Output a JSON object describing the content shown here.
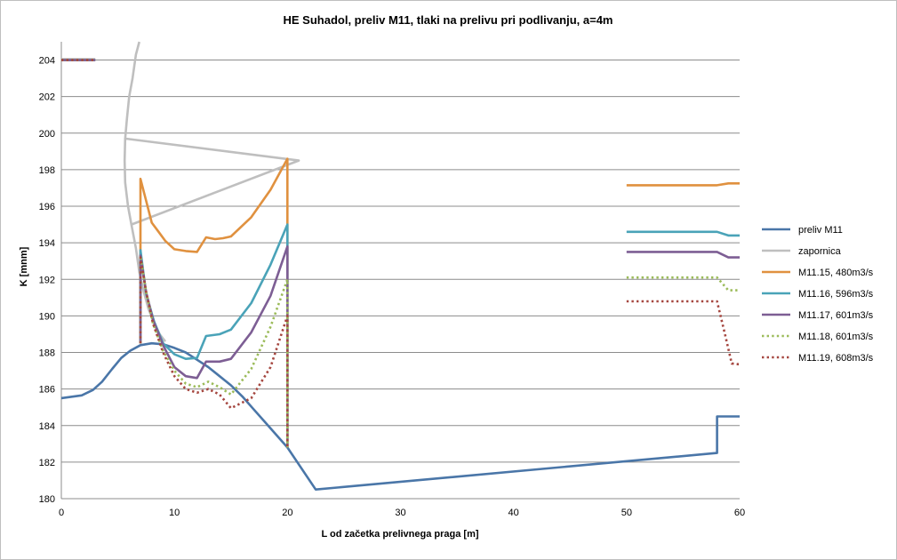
{
  "chart_data": {
    "type": "line",
    "title": "HE Suhadol, preliv M11, tlaki na prelivu pri podlivanju, a=4m",
    "xlabel": "L od začetka prelivnega praga [m]",
    "ylabel": "K [mnm]",
    "xlim": [
      0,
      60
    ],
    "ylim": [
      180,
      205
    ],
    "x_ticks": [
      0,
      10,
      20,
      30,
      40,
      50,
      60
    ],
    "x_tick_labels": [
      "0",
      "10",
      "20",
      "30",
      "40",
      "50",
      "60"
    ],
    "y_ticks": [
      180,
      182,
      184,
      186,
      188,
      190,
      192,
      194,
      196,
      198,
      200,
      202,
      204
    ],
    "y_tick_labels": [
      "180",
      "182",
      "184",
      "186",
      "188",
      "190",
      "192",
      "194",
      "196",
      "198",
      "200",
      "202",
      "204"
    ],
    "grid": "horizontal",
    "legend_position": "right",
    "series": [
      {
        "name": "preliv M11",
        "color": "#4a76a8",
        "dash": "solid",
        "width": 2.6,
        "segments": [
          [
            [
              0,
              185.5
            ],
            [
              1.8,
              185.65
            ],
            [
              2.8,
              185.95
            ],
            [
              3.6,
              186.4
            ],
            [
              4.5,
              187.1
            ],
            [
              5.3,
              187.7
            ],
            [
              6.1,
              188.1
            ],
            [
              7,
              188.4
            ],
            [
              8,
              188.5
            ],
            [
              9,
              188.45
            ],
            [
              10,
              188.25
            ],
            [
              11,
              188
            ],
            [
              12,
              187.6
            ],
            [
              13,
              187.2
            ],
            [
              14,
              186.7
            ],
            [
              15,
              186.2
            ],
            [
              16,
              185.6
            ],
            [
              17,
              184.9
            ],
            [
              18,
              184.2
            ],
            [
              19,
              183.5
            ],
            [
              20,
              182.8
            ],
            [
              22.5,
              180.5
            ],
            [
              58,
              182.5
            ],
            [
              58,
              184.5
            ],
            [
              60,
              184.5
            ]
          ]
        ]
      },
      {
        "name": "zapornica",
        "color": "#bfbfbf",
        "dash": "solid",
        "width": 2.6,
        "segments": [
          [
            [
              6.9,
              205
            ],
            [
              6.6,
              204.3
            ],
            [
              6.3,
              203
            ],
            [
              6,
              202
            ],
            [
              5.8,
              200.8
            ],
            [
              5.65,
              199.7
            ],
            [
              5.6,
              198.5
            ],
            [
              5.65,
              197.3
            ],
            [
              5.9,
              196
            ],
            [
              6.2,
              195
            ],
            [
              6.6,
              193.7
            ],
            [
              6.9,
              192.4
            ],
            [
              7.3,
              191.3
            ],
            [
              7.7,
              190.4
            ],
            [
              8.2,
              189.6
            ],
            [
              8.7,
              189
            ],
            [
              9.2,
              188.6
            ]
          ],
          [
            [
              5.7,
              199.7
            ],
            [
              21,
              198.5
            ],
            [
              6.2,
              195
            ]
          ],
          [
            [
              0,
              204.05
            ],
            [
              3,
              204.05
            ]
          ]
        ]
      },
      {
        "name": "M11.15, 480m3/s",
        "color": "#e0913f",
        "dash": "solid",
        "width": 2.6,
        "segments": [
          [
            [
              0,
              204
            ],
            [
              3,
              204
            ]
          ],
          [
            [
              7,
              188.5
            ],
            [
              7,
              197.5
            ],
            [
              7.5,
              196.3
            ],
            [
              8,
              195.1
            ],
            [
              8.6,
              194.6
            ],
            [
              9.2,
              194.1
            ],
            [
              10,
              193.65
            ],
            [
              11,
              193.55
            ],
            [
              12,
              193.5
            ],
            [
              12.8,
              194.3
            ],
            [
              13.6,
              194.2
            ],
            [
              14.3,
              194.25
            ],
            [
              15,
              194.35
            ],
            [
              16.8,
              195.4
            ],
            [
              18.5,
              196.9
            ],
            [
              20,
              198.6
            ],
            [
              20,
              182.8
            ]
          ],
          [
            [
              50,
              197.15
            ],
            [
              58,
              197.15
            ],
            [
              59,
              197.25
            ],
            [
              60,
              197.25
            ]
          ]
        ]
      },
      {
        "name": "M11.16, 596m3/s",
        "color": "#4aa3b8",
        "dash": "solid",
        "width": 2.6,
        "segments": [
          [
            [
              0,
              204
            ],
            [
              3,
              204
            ]
          ],
          [
            [
              7,
              188.5
            ],
            [
              7,
              193.6
            ],
            [
              7.5,
              191.2
            ],
            [
              8.2,
              189.7
            ],
            [
              9,
              188.5
            ],
            [
              10,
              187.9
            ],
            [
              11,
              187.65
            ],
            [
              12,
              187.7
            ],
            [
              12.8,
              188.9
            ],
            [
              14,
              189
            ],
            [
              15,
              189.25
            ],
            [
              16.8,
              190.7
            ],
            [
              18.5,
              192.8
            ],
            [
              20,
              195
            ],
            [
              20,
              182.8
            ]
          ],
          [
            [
              50,
              194.6
            ],
            [
              58,
              194.6
            ],
            [
              59,
              194.4
            ],
            [
              60,
              194.4
            ]
          ]
        ]
      },
      {
        "name": "M11.17, 601m3/s",
        "color": "#7d5e94",
        "dash": "solid",
        "width": 2.6,
        "segments": [
          [
            [
              0,
              204
            ],
            [
              3,
              204
            ]
          ],
          [
            [
              7,
              188.5
            ],
            [
              7,
              193.3
            ],
            [
              7.5,
              191.3
            ],
            [
              8.1,
              189.8
            ],
            [
              9,
              188.4
            ],
            [
              10,
              187.2
            ],
            [
              11,
              186.7
            ],
            [
              12,
              186.6
            ],
            [
              12.8,
              187.5
            ],
            [
              14,
              187.5
            ],
            [
              15,
              187.65
            ],
            [
              16.8,
              189.1
            ],
            [
              18.5,
              191.1
            ],
            [
              20,
              193.8
            ],
            [
              20,
              182.8
            ]
          ],
          [
            [
              50,
              193.5
            ],
            [
              58,
              193.5
            ],
            [
              59,
              193.2
            ],
            [
              60,
              193.2
            ]
          ]
        ]
      },
      {
        "name": "M11.18, 601m3/s",
        "color": "#9bbb59",
        "dash": "dotted",
        "width": 2.6,
        "segments": [
          [
            [
              0,
              204
            ],
            [
              3,
              204
            ]
          ],
          [
            [
              7,
              188.5
            ],
            [
              7,
              193.3
            ],
            [
              7.5,
              191.3
            ],
            [
              8.1,
              189.6
            ],
            [
              9,
              188.1
            ],
            [
              10,
              187
            ],
            [
              11,
              186.3
            ],
            [
              12,
              186.1
            ],
            [
              13,
              186.4
            ],
            [
              14,
              186.1
            ],
            [
              15,
              185.7
            ],
            [
              16.8,
              187.1
            ],
            [
              18.5,
              189.4
            ],
            [
              20,
              192
            ],
            [
              20,
              182.8
            ]
          ],
          [
            [
              50,
              192.1
            ],
            [
              58,
              192.1
            ],
            [
              59,
              191.4
            ],
            [
              60,
              191.4
            ]
          ]
        ]
      },
      {
        "name": "M11.19, 608m3/s",
        "color": "#a5463f",
        "dash": "dotted",
        "width": 2.6,
        "segments": [
          [
            [
              0,
              204
            ],
            [
              3,
              204
            ]
          ],
          [
            [
              7,
              188.5
            ],
            [
              7,
              193.2
            ],
            [
              7.5,
              191.3
            ],
            [
              8.1,
              189.6
            ],
            [
              9,
              188
            ],
            [
              10,
              186.7
            ],
            [
              11,
              186
            ],
            [
              12,
              185.8
            ],
            [
              13,
              186
            ],
            [
              14,
              185.7
            ],
            [
              15,
              184.95
            ],
            [
              16.8,
              185.5
            ],
            [
              18.5,
              187.2
            ],
            [
              20,
              190
            ],
            [
              20,
              182.8
            ]
          ],
          [
            [
              50,
              190.8
            ],
            [
              58,
              190.8
            ],
            [
              58.7,
              189
            ],
            [
              59.3,
              187.4
            ],
            [
              60,
              187.35
            ]
          ]
        ]
      }
    ]
  }
}
